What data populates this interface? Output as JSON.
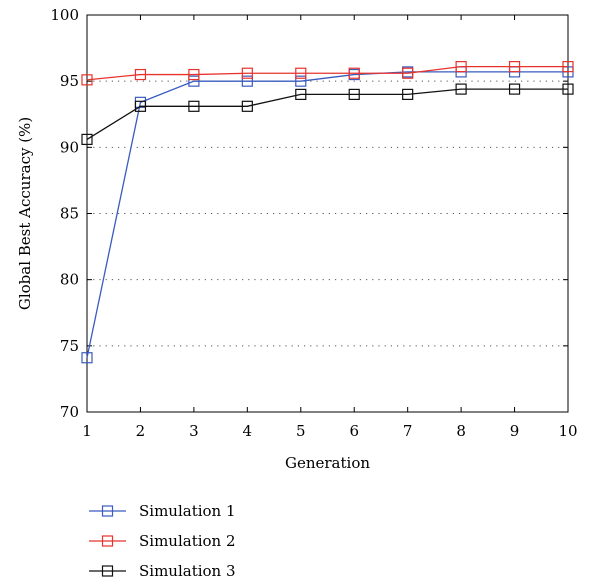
{
  "chart_data": {
    "type": "line",
    "title": "",
    "xlabel": "Generation",
    "ylabel": "Global Best Accuracy (%)",
    "xlim": [
      1,
      10
    ],
    "ylim": [
      70,
      100
    ],
    "x_ticks": [
      1,
      2,
      3,
      4,
      5,
      6,
      7,
      8,
      9,
      10
    ],
    "y_ticks": [
      70,
      75,
      80,
      85,
      90,
      95,
      100
    ],
    "grid": "horizontal dotted",
    "legend_position": "bottom-left",
    "x": [
      1,
      2,
      3,
      4,
      5,
      6,
      7,
      8,
      9,
      10
    ],
    "series": [
      {
        "name": "Simulation 1",
        "color": "#3a5bbf",
        "marker": "square",
        "values": [
          74.1,
          93.4,
          95.0,
          95.0,
          95.0,
          95.5,
          95.7,
          95.7,
          95.7,
          95.7
        ]
      },
      {
        "name": "Simulation 2",
        "color": "#e8332c",
        "marker": "square",
        "values": [
          95.1,
          95.5,
          95.5,
          95.6,
          95.6,
          95.6,
          95.6,
          96.1,
          96.1,
          96.1
        ]
      },
      {
        "name": "Simulation 3",
        "color": "#111111",
        "marker": "square",
        "values": [
          90.6,
          93.1,
          93.1,
          93.1,
          94.0,
          94.0,
          94.0,
          94.4,
          94.4,
          94.4
        ]
      }
    ]
  }
}
